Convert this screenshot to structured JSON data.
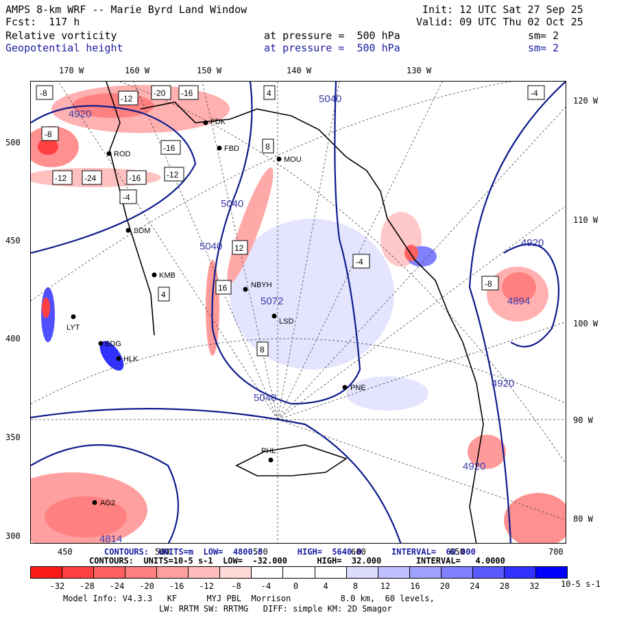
{
  "header": {
    "model_title": "AMPS 8-km WRF -- Marie Byrd Land Window",
    "forecast": "Fcst:  117 h",
    "init": "Init: 12 UTC Sat 27 Sep 25",
    "valid": "Valid: 09 UTC Thu 02 Oct 25",
    "field1_name": "Relative vorticity",
    "field1_level": "at pressure =  500 hPa",
    "field1_smooth": "sm= 2",
    "field2_name": "Geopotential height",
    "field2_level": "at pressure =  500 hPa",
    "field2_smooth": "sm= 2"
  },
  "axes": {
    "top_lon": [
      "170 W",
      "160 W",
      "150 W",
      "140 W",
      "130 W"
    ],
    "right_lon": [
      "120 W",
      "110 W",
      "100 W",
      "90 W",
      "80 W"
    ],
    "left_ticks": [
      "500",
      "450",
      "400",
      "350",
      "300"
    ],
    "bottom_ticks": [
      "450",
      "500",
      "550",
      "600",
      "650",
      "700"
    ]
  },
  "stations": [
    {
      "id": "ROD"
    },
    {
      "id": "FDK"
    },
    {
      "id": "FBD"
    },
    {
      "id": "MOU"
    },
    {
      "id": "SDM"
    },
    {
      "id": "KMB"
    },
    {
      "id": "NBYH"
    },
    {
      "id": "LSD"
    },
    {
      "id": "LYT"
    },
    {
      "id": "BDG"
    },
    {
      "id": "HLK"
    },
    {
      "id": "PNE"
    },
    {
      "id": "PHL"
    },
    {
      "id": "AG2"
    }
  ],
  "height_labels": [
    "4920",
    "5040",
    "5040",
    "5040",
    "5040",
    "4920",
    "4920",
    "4920",
    "4814",
    "5072",
    "4894"
  ],
  "vort_labels": [
    "-8",
    "-12",
    "-20",
    "-16",
    "-8",
    "-12",
    "-4",
    "-16",
    "-24",
    "-16",
    "-12",
    "-4",
    "4",
    "8",
    "12",
    "16",
    "-8",
    "-4",
    "4",
    "8"
  ],
  "footer": {
    "height_contours": "CONTOURS:  UNITS=m  LOW=  4800.0       HIGH=  5640.0      INTERVAL=  60.000",
    "vort_contours": "CONTOURS:  UNITS=10-5 s-1  LOW=  -32.000      HIGH=  32.000       INTERVAL=   4.0000",
    "model_info": "Model Info: V4.3.3   KF      MYJ PBL  Morrison          8.0 km,  60 levels,",
    "model_info2": "LW: RRTM SW: RRTMG   DIFF: simple KM: 2D Smagor",
    "colorbar_labels": [
      "-32",
      "-28",
      "-24",
      "-20",
      "-16",
      "-12",
      "-8",
      "-4",
      "0",
      "4",
      "8",
      "12",
      "16",
      "20",
      "24",
      "28",
      "32"
    ],
    "colorbar_units": "10-5 s-1",
    "colorbar_colors": [
      "#ff1a1a",
      "#ff4040",
      "#ff6060",
      "#ff8080",
      "#ffa0a0",
      "#ffbcbc",
      "#ffd8d8",
      "#ffffff",
      "#ffffff",
      "#ffffff",
      "#dcdcff",
      "#c0c0ff",
      "#a0a0ff",
      "#8080ff",
      "#5a5aff",
      "#3030ff",
      "#0000ff"
    ]
  }
}
